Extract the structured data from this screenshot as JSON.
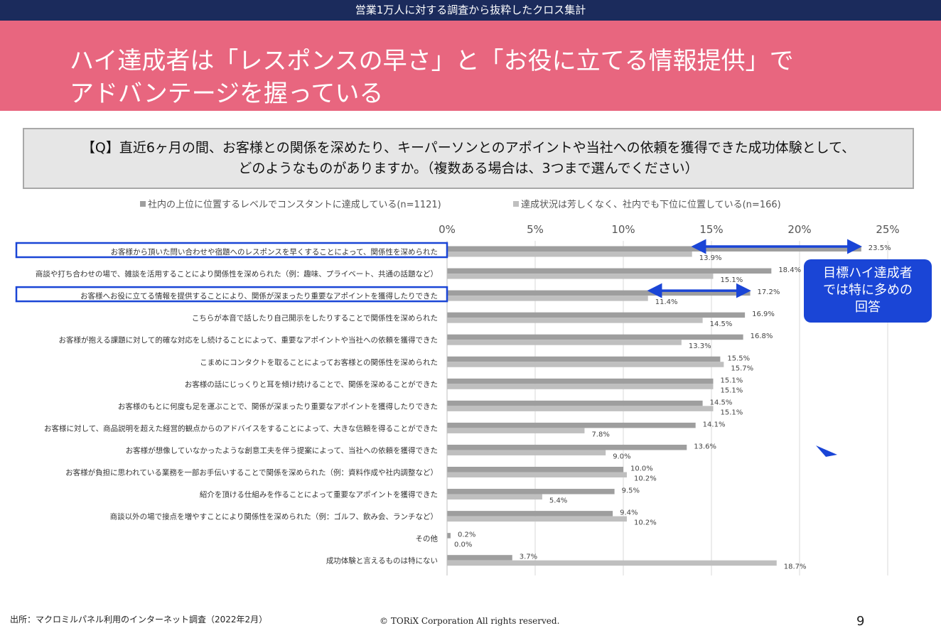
{
  "header": {
    "top_label": "営業1万人に対する調査から抜粋したクロス集計",
    "title_line1": "ハイ達成者は「レスポンスの早さ」と「お役に立てる情報提供」で",
    "title_line2": "アドバンテージを握っている"
  },
  "question": {
    "line1": "【Q】直近6ヶ月の間、お客様との関係を深めたり、キーパーソンとのアポイントや当社への依頼を獲得できた成功体験として、",
    "line2": "どのようなものがありますか。（複数ある場合は、3つまで選んでください）"
  },
  "callout": {
    "line1": "目標ハイ達成者",
    "line2": "では特に多めの",
    "line3": "回答"
  },
  "footer": {
    "source": "出所：マクロミルパネル利用のインターネット調査（2022年2月）",
    "copyright": "© TORiX Corporation All rights reserved.",
    "page": "9"
  },
  "colors": {
    "series1": "#9e9e9e",
    "series2": "#bfbfbf",
    "highlight": "#1a45d6",
    "banner": "#e8667f",
    "topbar": "#1b2b5c"
  },
  "chart_data": {
    "type": "bar",
    "orientation": "horizontal",
    "title": "",
    "xlabel": "",
    "ylabel": "",
    "xlim": [
      0,
      25
    ],
    "ticks": [
      "0%",
      "5%",
      "10%",
      "15%",
      "20%",
      "25%"
    ],
    "tick_values": [
      0,
      5,
      10,
      15,
      20,
      25
    ],
    "grid": true,
    "legend_position": "top",
    "categories": [
      "お客様から頂いた問い合わせや宿題へのレスポンスを早くすることによって、関係性を深められた",
      "商談や打ち合わせの場で、雑談を活用することにより関係性を深められた（例：趣味、プライベート、共通の話題など）",
      "お客様へお役に立てる情報を提供することにより、関係が深まったり重要なアポイントを獲得したりできた",
      "こちらが本音で話したり自己開示をしたりすることで関係性を深められた",
      "お客様が抱える課題に対して的確な対応をし続けることによって、重要なアポイントや当社への依頼を獲得できた",
      "こまめにコンタクトを取ることによってお客様との関係性を深められた",
      "お客様の話にじっくりと耳を傾け続けることで、関係を深めることができた",
      "お客様のもとに何度も足を運ぶことで、関係が深まったり重要なアポイントを獲得したりできた",
      "お客様に対して、商品説明を超えた経営的観点からのアドバイスをすることによって、大きな信頼を得ることができた",
      "お客様が想像していなかったような創意工夫を伴う提案によって、当社への依頼を獲得できた",
      "お客様が負担に思われている業務を一部お手伝いすることで関係を深められた（例：資料作成や社内調整など）",
      "紹介を頂ける仕組みを作ることによって重要なアポイントを獲得できた",
      "商談以外の場で接点を増やすことにより関係性を深められた（例：ゴルフ、飲み会、ランチなど）",
      "その他",
      "成功体験と言えるものは特にない"
    ],
    "series": [
      {
        "name": "社内の上位に位置するレベルでコンスタントに達成している(n=1121)",
        "values": [
          23.5,
          18.4,
          17.2,
          16.9,
          16.8,
          15.5,
          15.1,
          14.5,
          14.1,
          13.6,
          10.0,
          9.5,
          9.4,
          0.2,
          3.7
        ],
        "labels": [
          "23.5%",
          "18.4%",
          "17.2%",
          "16.9%",
          "16.8%",
          "15.5%",
          "15.1%",
          "14.5%",
          "14.1%",
          "13.6%",
          "10.0%",
          "9.5%",
          "9.4%",
          "0.2%",
          "3.7%"
        ]
      },
      {
        "name": "達成状況は芳しくなく、社内でも下位に位置している(n=166)",
        "values": [
          13.9,
          15.1,
          11.4,
          14.5,
          13.3,
          15.7,
          15.1,
          15.1,
          7.8,
          9.0,
          10.2,
          5.4,
          10.2,
          0.0,
          18.7
        ],
        "labels": [
          "13.9%",
          "15.1%",
          "11.4%",
          "14.5%",
          "13.3%",
          "15.7%",
          "15.1%",
          "15.1%",
          "7.8%",
          "9.0%",
          "10.2%",
          "5.4%",
          "10.2%",
          "0.0%",
          "18.7%"
        ]
      }
    ],
    "highlighted_categories": [
      0,
      2
    ],
    "arrows": [
      {
        "category": 0,
        "from": 13.9,
        "to": 23.5
      },
      {
        "category": 2,
        "from": 11.4,
        "to": 17.2
      }
    ]
  }
}
